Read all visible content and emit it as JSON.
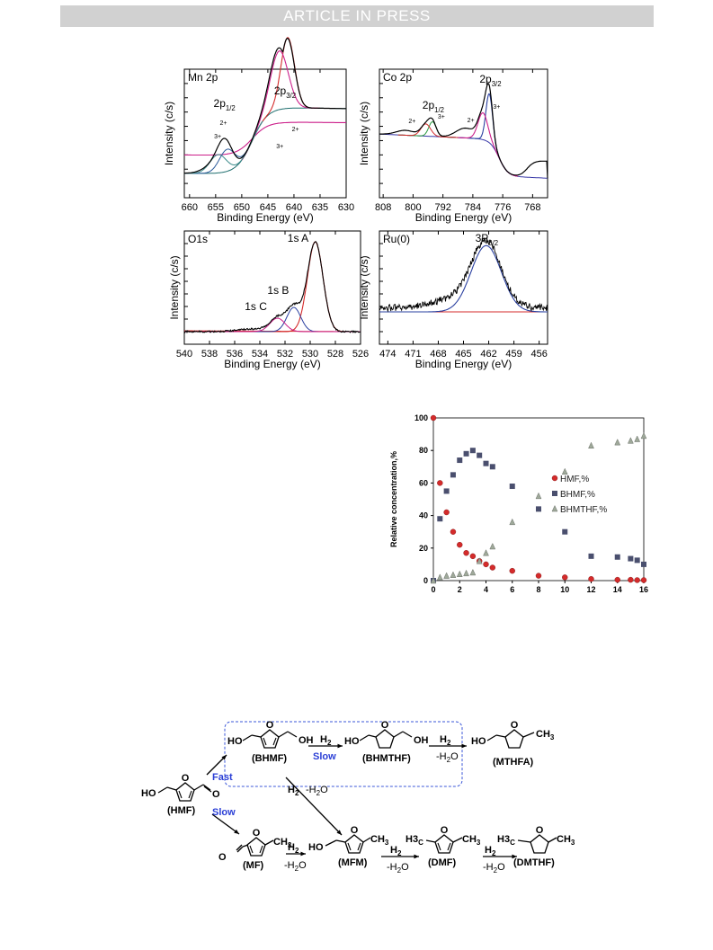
{
  "header": {
    "banner": "ARTICLE IN PRESS"
  },
  "xps_panels": [
    {
      "name": "mn2p",
      "title": "Mn 2p",
      "ylabel": "Intensity (c/s)",
      "xlabel": "Binding Energy (eV)",
      "xticks": [
        "660",
        "655",
        "650",
        "645",
        "640",
        "635",
        "630"
      ],
      "labels": {
        "peak_a": "2p",
        "peak_a_sub": "1/2",
        "peak_b": "2p",
        "peak_b_sub": "3/2",
        "a_2plus": "2+",
        "a_3plus": "3+",
        "b_2plus": "2+",
        "b_3plus": "3+"
      }
    },
    {
      "name": "co2p",
      "title": "Co 2p",
      "ylabel": "Intensity (c/s)",
      "xlabel": "Binding Energy (eV)",
      "xticks": [
        "808",
        "800",
        "792",
        "784",
        "776",
        "768"
      ],
      "labels": {
        "peak_a": "2p",
        "peak_a_sub": "1/2",
        "peak_b": "2p",
        "peak_b_sub": "3/2",
        "a_2plus": "2+",
        "a_3plus": "3+",
        "b_2plus": "2+",
        "b_3plus": "3+"
      }
    },
    {
      "name": "o1s",
      "title": "O1s",
      "ylabel": "Intensity (c/s)",
      "xlabel": "Binding Energy (eV)",
      "xticks": [
        "540",
        "538",
        "536",
        "534",
        "532",
        "530",
        "528",
        "526"
      ],
      "labels": {
        "a": "1s A",
        "b": "1s B",
        "c": "1s C"
      }
    },
    {
      "name": "ru0",
      "title": "Ru(0)",
      "ylabel": "Intensity (c/s)",
      "xlabel": "Binding Energy (eV)",
      "xticks": [
        "474",
        "471",
        "468",
        "465",
        "462",
        "459",
        "456"
      ],
      "labels": {
        "a": "3P",
        "a_sub": "3/2"
      }
    }
  ],
  "chart_data": {
    "type": "scatter",
    "ylabel": "Relative concentration,%",
    "xlim": [
      0,
      16
    ],
    "ylim": [
      0,
      100
    ],
    "xticks": [
      0,
      2,
      4,
      6,
      8,
      10,
      12,
      14,
      16
    ],
    "yticks": [
      0,
      20,
      40,
      60,
      80,
      100
    ],
    "legend_position": "right",
    "series": [
      {
        "name": "HMF,%",
        "marker": "circle",
        "color": "#d42b2b",
        "x": [
          0,
          0.5,
          1,
          1.5,
          2,
          2.5,
          3,
          3.5,
          4,
          4.5,
          6,
          8,
          10,
          12,
          14,
          15,
          15.5,
          16
        ],
        "y": [
          100,
          60,
          42,
          30,
          22,
          17,
          15,
          12,
          10,
          8,
          6,
          3,
          2,
          1,
          0.5,
          0.5,
          0.3,
          0.3
        ]
      },
      {
        "name": "BHMF,%",
        "marker": "square",
        "color": "#4a4f6e",
        "x": [
          0,
          0.5,
          1,
          1.5,
          2,
          2.5,
          3,
          3.5,
          4,
          4.5,
          6,
          8,
          10,
          12,
          14,
          15,
          15.5,
          16
        ],
        "y": [
          0,
          38,
          55,
          65,
          74,
          78,
          80,
          77,
          72,
          70,
          58,
          44,
          30,
          15,
          14.5,
          13.5,
          12.5,
          10
        ]
      },
      {
        "name": "BHMTHF,%",
        "marker": "triangle",
        "color": "#9fa99a",
        "x": [
          0,
          0.5,
          1,
          1.5,
          2,
          2.5,
          3,
          3.5,
          4,
          4.5,
          6,
          8,
          10,
          12,
          14,
          15,
          15.5,
          16
        ],
        "y": [
          0,
          2,
          3,
          3.5,
          4,
          4.5,
          5,
          12,
          17,
          21,
          36,
          52,
          67,
          83,
          85,
          86,
          87,
          89
        ]
      }
    ]
  },
  "scheme": {
    "compounds": {
      "hmf": "(HMF)",
      "bhmf": "(BHMF)",
      "bhmthf": "(BHMTHF)",
      "mthfa": "(MTHFA)",
      "mf": "(MF)",
      "mfm": "(MFM)",
      "dmf": "(DMF)",
      "dmthf": "(DMTHF)"
    },
    "groups": {
      "ho": "HO",
      "oh": "OH",
      "o": "O",
      "ch3": "CH3",
      "h3c": "H3C"
    },
    "arrows": {
      "h2": "H2",
      "minus_h2o": "-H2O",
      "fast": "Fast",
      "slow": "Slow"
    }
  }
}
